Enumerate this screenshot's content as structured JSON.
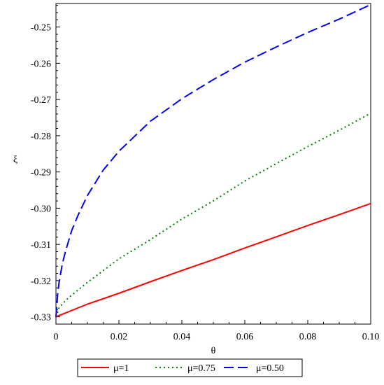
{
  "chart_data": {
    "type": "line",
    "xlabel": "θ",
    "ylabel": "ξ",
    "xlim": [
      0,
      0.1
    ],
    "ylim": [
      -0.332,
      -0.2435
    ],
    "x_ticks": [
      0,
      0.02,
      0.04,
      0.06,
      0.08,
      0.1
    ],
    "x_tick_labels": [
      "0",
      "0.02",
      "0.04",
      "0.06",
      "0.08",
      "0.10"
    ],
    "y_ticks": [
      -0.33,
      -0.32,
      -0.31,
      -0.3,
      -0.29,
      -0.28,
      -0.27,
      -0.26,
      -0.25
    ],
    "y_tick_labels": [
      "-0.33",
      "-0.32",
      "-0.31",
      "-0.30",
      "-0.29",
      "-0.28",
      "-0.27",
      "-0.26",
      "-0.25"
    ],
    "grid": false,
    "legend_position": "bottom",
    "series": [
      {
        "name": "μ=1",
        "color": "#ff0000",
        "style": "solid",
        "x": [
          0,
          0.01,
          0.02,
          0.03,
          0.04,
          0.05,
          0.06,
          0.07,
          0.08,
          0.09,
          0.1
        ],
        "values": [
          -0.33,
          -0.3265,
          -0.3235,
          -0.3203,
          -0.3172,
          -0.3142,
          -0.311,
          -0.3079,
          -0.3048,
          -0.3018,
          -0.2987
        ]
      },
      {
        "name": "μ=0.75",
        "color": "#008000",
        "style": "dotted",
        "x": [
          0,
          0.001,
          0.003,
          0.005,
          0.01,
          0.02,
          0.03,
          0.04,
          0.05,
          0.06,
          0.07,
          0.08,
          0.09,
          0.1
        ],
        "values": [
          -0.33,
          -0.3275,
          -0.3255,
          -0.324,
          -0.3205,
          -0.314,
          -0.3087,
          -0.303,
          -0.298,
          -0.2925,
          -0.2877,
          -0.283,
          -0.2785,
          -0.2738
        ]
      },
      {
        "name": "μ=0.50",
        "color": "#0000ff",
        "style": "dashed",
        "x": [
          0,
          0.0005,
          0.001,
          0.002,
          0.003,
          0.005,
          0.007,
          0.01,
          0.015,
          0.02,
          0.03,
          0.04,
          0.05,
          0.06,
          0.07,
          0.08,
          0.09,
          0.1
        ],
        "values": [
          -0.33,
          -0.324,
          -0.3205,
          -0.3155,
          -0.312,
          -0.3062,
          -0.302,
          -0.2965,
          -0.2895,
          -0.2843,
          -0.276,
          -0.2698,
          -0.2645,
          -0.2597,
          -0.2555,
          -0.2515,
          -0.2478,
          -0.2438
        ]
      }
    ]
  }
}
